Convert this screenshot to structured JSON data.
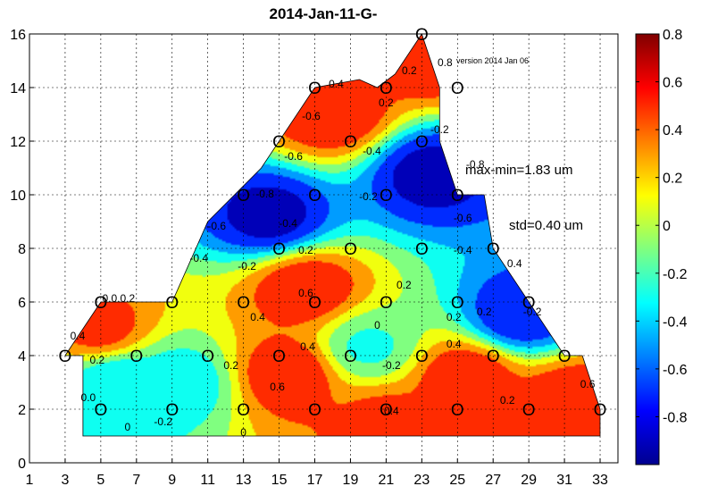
{
  "chart_data": {
    "type": "contour",
    "title": "2014-Jan-11-G-",
    "version_note": "version 2014  Jan 06",
    "annotations": [
      "max-min=1.83 um",
      "std=0.40 um"
    ],
    "x_ticks": [
      1,
      3,
      5,
      7,
      9,
      11,
      13,
      15,
      17,
      19,
      21,
      23,
      25,
      27,
      29,
      31,
      33
    ],
    "y_ticks": [
      0,
      2,
      4,
      6,
      8,
      10,
      12,
      14,
      16
    ],
    "xlim": [
      1,
      34
    ],
    "ylim": [
      0,
      16
    ],
    "grid": true,
    "colorbar": {
      "range": [
        -1.0,
        0.8
      ],
      "tick_values": [
        0.8,
        0.6,
        0.4,
        0.2,
        0,
        -0.2,
        -0.4,
        -0.6,
        -0.8
      ],
      "tick_labels": [
        "0.8",
        "0.6",
        "0.4",
        "0.2",
        "0",
        "-0.2",
        "-0.4",
        "-0.6",
        "-0.8"
      ]
    },
    "contour_levels": [
      -0.8,
      -0.6,
      -0.4,
      -0.2,
      0,
      0.2,
      0.4,
      0.6
    ],
    "measurement_marker": "O",
    "measurement_points": [
      [
        3,
        4
      ],
      [
        5,
        2
      ],
      [
        5,
        6
      ],
      [
        7,
        4
      ],
      [
        9,
        2
      ],
      [
        9,
        6
      ],
      [
        11,
        4
      ],
      [
        13,
        2
      ],
      [
        13,
        6
      ],
      [
        13,
        10
      ],
      [
        15,
        4
      ],
      [
        15,
        8
      ],
      [
        15,
        12
      ],
      [
        17,
        2
      ],
      [
        17,
        6
      ],
      [
        17,
        10
      ],
      [
        17,
        14
      ],
      [
        19,
        4
      ],
      [
        19,
        8
      ],
      [
        19,
        12
      ],
      [
        21,
        2
      ],
      [
        21,
        6
      ],
      [
        21,
        10
      ],
      [
        21,
        14
      ],
      [
        23,
        4
      ],
      [
        23,
        8
      ],
      [
        23,
        12
      ],
      [
        23,
        16
      ],
      [
        25,
        2
      ],
      [
        25,
        6
      ],
      [
        25,
        10
      ],
      [
        25,
        14
      ],
      [
        27,
        4
      ],
      [
        27,
        8
      ],
      [
        29,
        2
      ],
      [
        29,
        6
      ],
      [
        31,
        4
      ],
      [
        33,
        2
      ]
    ],
    "boundary": [
      [
        4,
        1
      ],
      [
        33,
        1
      ],
      [
        33,
        2
      ],
      [
        32,
        4
      ],
      [
        31,
        4
      ],
      [
        29,
        6
      ],
      [
        27,
        8
      ],
      [
        26.5,
        10
      ],
      [
        25,
        10
      ],
      [
        24,
        12
      ],
      [
        24,
        14
      ],
      [
        23,
        16
      ],
      [
        21.5,
        14.5
      ],
      [
        20.5,
        14
      ],
      [
        19.5,
        14.3
      ],
      [
        17,
        14
      ],
      [
        14,
        11
      ],
      [
        11,
        9
      ],
      [
        9,
        6
      ],
      [
        5,
        6
      ],
      [
        4,
        5
      ],
      [
        3,
        4
      ],
      [
        4,
        4
      ]
    ],
    "peaks": [
      {
        "x": 15.5,
        "y": 3.3,
        "value": 0.6
      },
      {
        "x": 16.5,
        "y": 6.5,
        "value": 0.6
      },
      {
        "x": 25.5,
        "y": 3.2,
        "value": 0.6
      },
      {
        "x": 31.5,
        "y": 2.3,
        "value": 0.6
      },
      {
        "x": 23.5,
        "y": 15.2,
        "value": 0.6
      },
      {
        "x": 18,
        "y": 13.0,
        "value": 0.6
      },
      {
        "x": 5,
        "y": 5.0,
        "value": 0.5
      },
      {
        "x": 21,
        "y": 1.5,
        "value": 0.5
      },
      {
        "x": 14.5,
        "y": 9.2,
        "value": -0.9
      },
      {
        "x": 23.5,
        "y": 10.8,
        "value": -0.9
      },
      {
        "x": 28.5,
        "y": 5.5,
        "value": -0.8
      },
      {
        "x": 6,
        "y": 3.0,
        "value": -0.4
      },
      {
        "x": 9.5,
        "y": 3.0,
        "value": -0.35
      },
      {
        "x": 20,
        "y": 4.3,
        "value": -0.25
      }
    ],
    "contour_labels": [
      {
        "x": 3.7,
        "y": 4.6,
        "text": "0.4"
      },
      {
        "x": 4.8,
        "y": 3.7,
        "text": "0.2"
      },
      {
        "x": 4.3,
        "y": 2.3,
        "text": "0.0"
      },
      {
        "x": 6.0,
        "y": 6.0,
        "text": "0.0.0.2"
      },
      {
        "x": 8.5,
        "y": 1.4,
        "text": "-0.2"
      },
      {
        "x": 6.5,
        "y": 1.2,
        "text": "0"
      },
      {
        "x": 10.5,
        "y": 7.5,
        "text": "-0.4"
      },
      {
        "x": 11.5,
        "y": 8.7,
        "text": "-0.6"
      },
      {
        "x": 13.2,
        "y": 7.2,
        "text": "-0.2"
      },
      {
        "x": 14.2,
        "y": 9.9,
        "text": "-0.8"
      },
      {
        "x": 15.5,
        "y": 8.8,
        "text": "-0.4"
      },
      {
        "x": 16.5,
        "y": 7.8,
        "text": "0.2"
      },
      {
        "x": 13.8,
        "y": 5.3,
        "text": "0.4"
      },
      {
        "x": 16.5,
        "y": 6.2,
        "text": "0.6"
      },
      {
        "x": 14.9,
        "y": 2.7,
        "text": "0.6"
      },
      {
        "x": 16.6,
        "y": 4.2,
        "text": "0.4"
      },
      {
        "x": 12.3,
        "y": 3.5,
        "text": "0.2"
      },
      {
        "x": 13.0,
        "y": 1.0,
        "text": "0"
      },
      {
        "x": 15.8,
        "y": 11.3,
        "text": "-0.6"
      },
      {
        "x": 16.8,
        "y": 12.8,
        "text": "-0.6"
      },
      {
        "x": 18.2,
        "y": 14.0,
        "text": "0.4"
      },
      {
        "x": 21.0,
        "y": 13.3,
        "text": "0.2"
      },
      {
        "x": 20.2,
        "y": 11.5,
        "text": "-0.4"
      },
      {
        "x": 20.0,
        "y": 9.8,
        "text": "-0.2"
      },
      {
        "x": 20.5,
        "y": 5.0,
        "text": "0"
      },
      {
        "x": 21.3,
        "y": 3.5,
        "text": "-0.2"
      },
      {
        "x": 22.0,
        "y": 6.5,
        "text": "0.2"
      },
      {
        "x": 21.3,
        "y": 1.8,
        "text": "0.4"
      },
      {
        "x": 24.8,
        "y": 4.3,
        "text": "0.4"
      },
      {
        "x": 24.8,
        "y": 5.3,
        "text": "0.2"
      },
      {
        "x": 26.5,
        "y": 5.5,
        "text": "0.2"
      },
      {
        "x": 25.3,
        "y": 7.8,
        "text": "-0.4"
      },
      {
        "x": 25.3,
        "y": 9.0,
        "text": "-0.6"
      },
      {
        "x": 26.0,
        "y": 11.0,
        "text": "-0.8"
      },
      {
        "x": 24.0,
        "y": 12.3,
        "text": "-0.2"
      },
      {
        "x": 28.2,
        "y": 7.3,
        "text": "0.4"
      },
      {
        "x": 29.2,
        "y": 5.5,
        "text": "-0.2"
      },
      {
        "x": 27.8,
        "y": 2.2,
        "text": "0.2"
      },
      {
        "x": 32.3,
        "y": 2.8,
        "text": "0.6"
      },
      {
        "x": 22.3,
        "y": 14.5,
        "text": "0.2"
      },
      {
        "x": 24.3,
        "y": 14.8,
        "text": "0.8"
      }
    ]
  }
}
